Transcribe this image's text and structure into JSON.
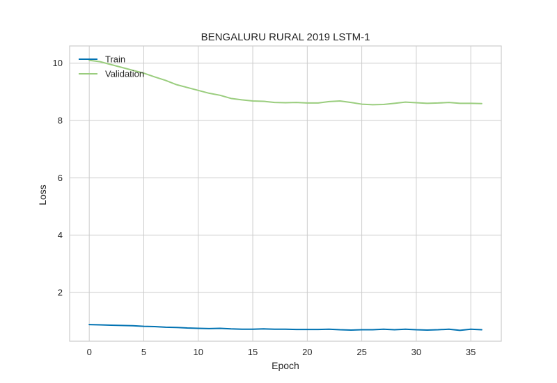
{
  "chart_data": {
    "type": "line",
    "title": "BENGALURU RURAL 2019 LSTM-1",
    "xlabel": "Epoch",
    "ylabel": "Loss",
    "xlim": [
      -1.8,
      37.8
    ],
    "ylim": [
      0.3,
      10.6
    ],
    "xticks": [
      0,
      5,
      10,
      15,
      20,
      25,
      30,
      35
    ],
    "yticks": [
      2,
      4,
      6,
      8,
      10
    ],
    "grid": true,
    "legend_position": "top-left",
    "x": [
      0,
      1,
      2,
      3,
      4,
      5,
      6,
      7,
      8,
      9,
      10,
      11,
      12,
      13,
      14,
      15,
      16,
      17,
      18,
      19,
      20,
      21,
      22,
      23,
      24,
      25,
      26,
      27,
      28,
      29,
      30,
      31,
      32,
      33,
      34,
      35,
      36
    ],
    "series": [
      {
        "name": "Train",
        "color": "#0072B2",
        "values": [
          0.88,
          0.87,
          0.86,
          0.85,
          0.84,
          0.82,
          0.81,
          0.79,
          0.78,
          0.76,
          0.75,
          0.74,
          0.75,
          0.73,
          0.72,
          0.72,
          0.73,
          0.72,
          0.72,
          0.71,
          0.71,
          0.71,
          0.72,
          0.7,
          0.69,
          0.7,
          0.7,
          0.72,
          0.7,
          0.72,
          0.7,
          0.69,
          0.7,
          0.72,
          0.68,
          0.72,
          0.7
        ]
      },
      {
        "name": "Validation",
        "color": "#9ACD7E",
        "values": [
          10.1,
          10.05,
          9.95,
          9.85,
          9.75,
          9.65,
          9.52,
          9.4,
          9.25,
          9.15,
          9.05,
          8.95,
          8.88,
          8.77,
          8.72,
          8.68,
          8.67,
          8.63,
          8.62,
          8.63,
          8.61,
          8.61,
          8.66,
          8.68,
          8.63,
          8.57,
          8.55,
          8.56,
          8.6,
          8.64,
          8.62,
          8.6,
          8.61,
          8.63,
          8.6,
          8.6,
          8.59
        ]
      }
    ]
  }
}
